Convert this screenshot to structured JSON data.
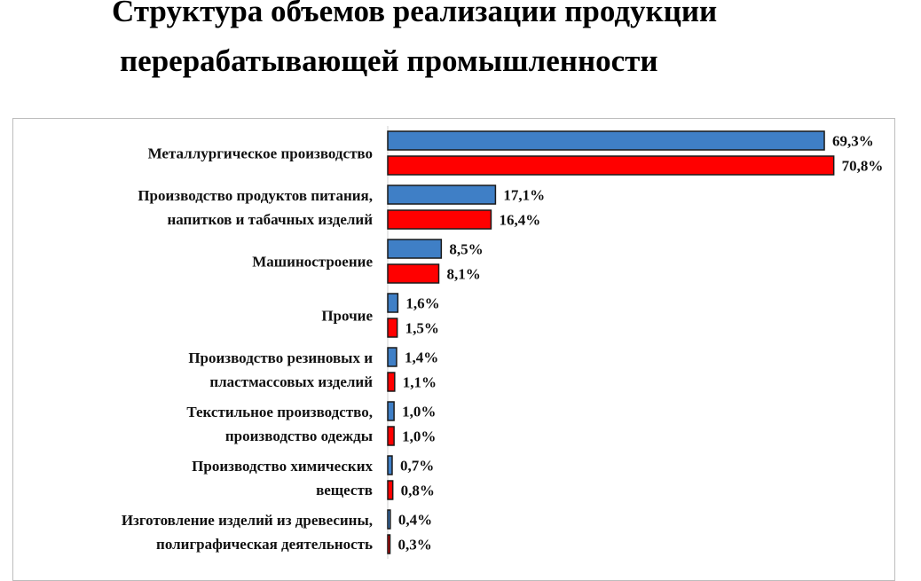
{
  "title": {
    "line1": "Структура объемов реализации продукции",
    "line2": "перерабатывающей промышленности"
  },
  "colors": {
    "series_blue": "#3f7fc6",
    "series_red": "#ff0000",
    "bar_border": "#1a1a1a"
  },
  "chart_data": {
    "type": "bar",
    "orientation": "horizontal",
    "title": "",
    "xlabel": "",
    "ylabel": "",
    "xlim": [
      0,
      72
    ],
    "grid": false,
    "legend": "none",
    "categories": [
      [
        "Металлургическое производство"
      ],
      [
        "Производство продуктов питания,",
        "напитков и табачных изделий"
      ],
      [
        "Машиностроение"
      ],
      [
        "Прочие"
      ],
      [
        "Производство резиновых и",
        "пластмассовых изделий"
      ],
      [
        "Текстильное производство,",
        "производство одежды"
      ],
      [
        "Производство химических",
        "веществ"
      ],
      [
        "Изготовление изделий из древесины,",
        "полиграфическая деятельность"
      ]
    ],
    "series": [
      {
        "color": "#3f7fc6",
        "values": [
          69.3,
          17.1,
          8.5,
          1.6,
          1.4,
          1.0,
          0.7,
          0.4
        ],
        "labels": [
          "69,3%",
          "17,1%",
          "8,5%",
          "1,6%",
          "1,4%",
          "1,0%",
          "0,7%",
          "0,4%"
        ]
      },
      {
        "color": "#ff0000",
        "values": [
          70.8,
          16.4,
          8.1,
          1.5,
          1.1,
          1.0,
          0.8,
          0.3
        ],
        "labels": [
          "70,8%",
          "16,4%",
          "8,1%",
          "1,5%",
          "1,1%",
          "1,0%",
          "0,8%",
          "0,3%"
        ]
      }
    ]
  }
}
